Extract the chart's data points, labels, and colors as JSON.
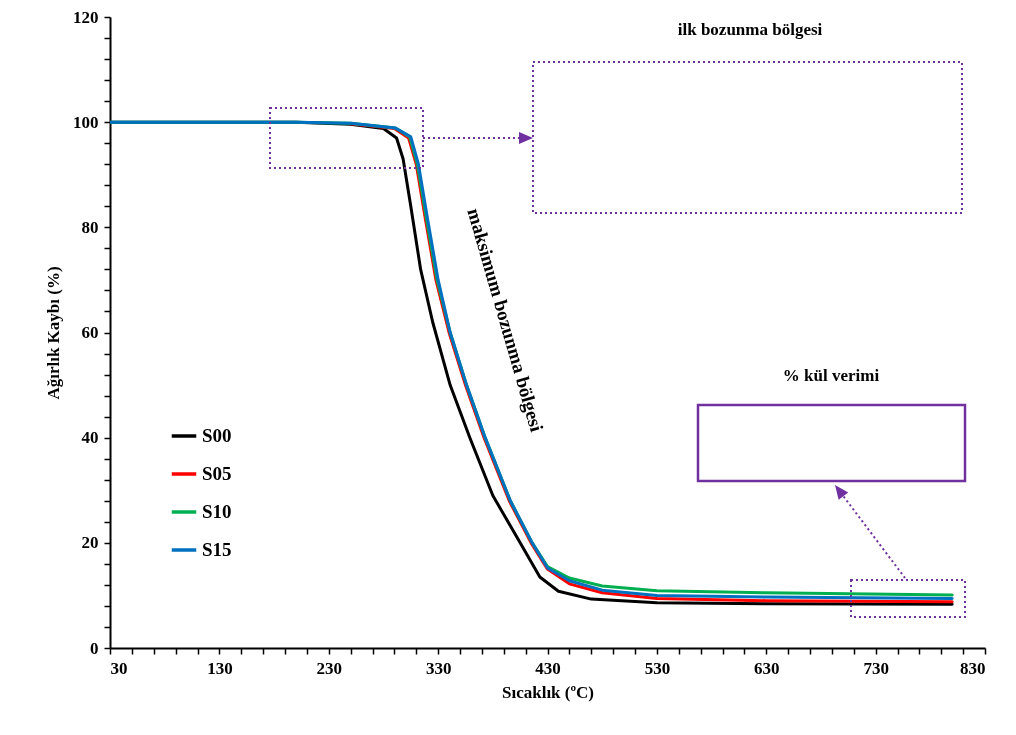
{
  "chart_data": {
    "type": "line",
    "xlabel": "Sıcaklık (ºC)",
    "ylabel": "Ağırlık  Kaybı (%)",
    "xlim": [
      30,
      830
    ],
    "ylim": [
      0,
      120
    ],
    "xticks": [
      30,
      {
        "value": 50,
        "label": null
      },
      {
        "value": 70,
        "label": null
      },
      {
        "value": 90,
        "label": null
      },
      {
        "value": 110,
        "label": null
      },
      130,
      {
        "value": 150,
        "label": null
      },
      {
        "value": 170,
        "label": null
      },
      {
        "value": 190,
        "label": null
      },
      {
        "value": 210,
        "label": null
      },
      230,
      {
        "value": 250,
        "label": null
      },
      {
        "value": 270,
        "label": null
      },
      {
        "value": 290,
        "label": null
      },
      {
        "value": 310,
        "label": null
      },
      330,
      {
        "value": 350,
        "label": null
      },
      {
        "value": 370,
        "label": null
      },
      {
        "value": 390,
        "label": null
      },
      {
        "value": 410,
        "label": null
      },
      430,
      {
        "value": 450,
        "label": null
      },
      {
        "value": 470,
        "label": null
      },
      {
        "value": 490,
        "label": null
      },
      {
        "value": 510,
        "label": null
      },
      530,
      {
        "value": 550,
        "label": null
      },
      {
        "value": 570,
        "label": null
      },
      {
        "value": 590,
        "label": null
      },
      {
        "value": 610,
        "label": null
      },
      630,
      {
        "value": 650,
        "label": null
      },
      {
        "value": 670,
        "label": null
      },
      {
        "value": 690,
        "label": null
      },
      {
        "value": 710,
        "label": null
      },
      730,
      {
        "value": 750,
        "label": null
      },
      {
        "value": 770,
        "label": null
      },
      {
        "value": 790,
        "label": null
      },
      {
        "value": 810,
        "label": null
      },
      830
    ],
    "yticks": [
      0,
      {
        "value": 4,
        "label": null
      },
      {
        "value": 8,
        "label": null
      },
      {
        "value": 12,
        "label": null
      },
      {
        "value": 16,
        "label": null
      },
      20,
      {
        "value": 24,
        "label": null
      },
      {
        "value": 28,
        "label": null
      },
      {
        "value": 32,
        "label": null
      },
      {
        "value": 36,
        "label": null
      },
      40,
      {
        "value": 44,
        "label": null
      },
      {
        "value": 48,
        "label": null
      },
      {
        "value": 52,
        "label": null
      },
      {
        "value": 56,
        "label": null
      },
      60,
      {
        "value": 64,
        "label": null
      },
      {
        "value": 68,
        "label": null
      },
      {
        "value": 72,
        "label": null
      },
      {
        "value": 76,
        "label": null
      },
      80,
      {
        "value": 84,
        "label": null
      },
      {
        "value": 88,
        "label": null
      },
      {
        "value": 92,
        "label": null
      },
      {
        "value": 96,
        "label": null
      },
      100,
      {
        "value": 104,
        "label": null
      },
      {
        "value": 108,
        "label": null
      },
      {
        "value": 112,
        "label": null
      },
      {
        "value": 116,
        "label": null
      },
      120
    ],
    "grid": false,
    "legend": "left",
    "marker": "none",
    "line_style": "solid",
    "series": [
      {
        "name": "S00",
        "color": "#000000",
        "x": [
          30,
          200,
          250,
          280,
          292,
          298,
          305,
          314,
          325,
          341,
          359,
          380,
          405,
          423,
          440,
          470,
          530,
          630,
          800
        ],
        "values": [
          100,
          100,
          99.6,
          98.8,
          97,
          93,
          84,
          72,
          62,
          50,
          40,
          29,
          20,
          13.5,
          10.8,
          9.3,
          8.6,
          8.4,
          8.3
        ]
      },
      {
        "name": "S05",
        "color": "#ff0000",
        "x": [
          250,
          290,
          303,
          310,
          318,
          328,
          340,
          355,
          372,
          395,
          415,
          430,
          450,
          480,
          530,
          630,
          800
        ],
        "values": [
          99.7,
          98.8,
          97,
          92,
          82,
          70,
          60,
          50,
          40,
          28,
          20,
          15,
          12.2,
          10.5,
          9.4,
          9,
          8.8
        ]
      },
      {
        "name": "S10",
        "color": "#00b050",
        "x": [
          30,
          200,
          250,
          291,
          304,
          311,
          319,
          329,
          341,
          356,
          373,
          396,
          416,
          430,
          450,
          480,
          530,
          630,
          800
        ],
        "values": [
          100,
          100,
          99.8,
          98.9,
          97.2,
          92,
          82,
          70,
          60,
          50,
          40,
          28,
          20,
          15.5,
          13.3,
          11.8,
          10.9,
          10.5,
          10.1
        ]
      },
      {
        "name": "S15",
        "color": "#0070c0",
        "x": [
          30,
          200,
          250,
          291,
          305,
          312,
          320,
          330,
          341,
          356,
          373,
          396,
          416,
          430,
          450,
          480,
          530,
          630,
          800
        ],
        "values": [
          100,
          100,
          99.8,
          98.9,
          97.2,
          92,
          82,
          70,
          60,
          50,
          40,
          28,
          20,
          15.2,
          12.8,
          11,
          10,
          9.7,
          9.4
        ]
      }
    ],
    "annotations": [
      "maksimum bozunma bölgesi",
      "ilk bozunma bölgesi",
      "% kül verimi"
    ]
  }
}
